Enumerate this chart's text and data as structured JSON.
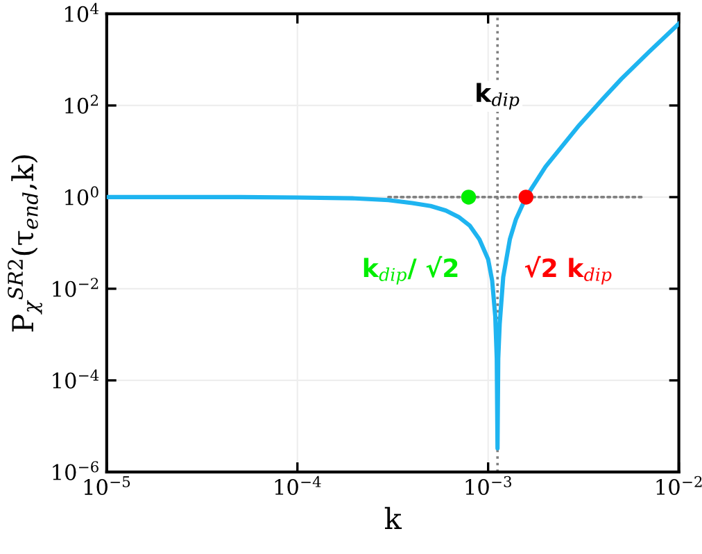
{
  "chart_data": {
    "type": "line",
    "xlabel": "k",
    "ylabel": "P$_{χ}$$^{SR2}$(τ$_{end}$,k)",
    "log": "xy",
    "grid": true,
    "xlim": [
      1e-05,
      0.01
    ],
    "ylim": [
      1e-06,
      10000.0
    ],
    "xticks": [
      {
        "value": 1e-05,
        "label": "10$^{−5}$"
      },
      {
        "value": 0.0001,
        "label": "10$^{−4}$"
      },
      {
        "value": 0.001,
        "label": "10$^{−3}$"
      },
      {
        "value": 0.01,
        "label": "10$^{−2}$"
      }
    ],
    "yticks": [
      {
        "value": 1e-06,
        "label": "10$^{−6}$"
      },
      {
        "value": 0.0001,
        "label": "10$^{−4}$"
      },
      {
        "value": 0.01,
        "label": "10$^{−2}$"
      },
      {
        "value": 1,
        "label": "10$^{0}$"
      },
      {
        "value": 100,
        "label": "10$^{2}$"
      },
      {
        "value": 10000.0,
        "label": "10$^{4}$"
      }
    ],
    "series": [
      {
        "color": "#808080",
        "line_style": "dotted",
        "x": [
          0.0003,
          0.0065
        ],
        "values": [
          1,
          1
        ]
      },
      {
        "color": "#1eb4f0",
        "line_style": "solid",
        "x": [
          1e-05,
          5e-05,
          0.0001,
          0.0002,
          0.0003,
          0.0004,
          0.0005,
          0.0006,
          0.0007,
          0.0008,
          0.0009,
          0.001,
          0.00105,
          0.00109,
          0.00111,
          0.00112,
          0.00113,
          0.00115,
          0.0012,
          0.0013,
          0.0014,
          0.00158,
          0.002,
          0.003,
          0.004,
          0.005,
          0.007,
          0.01
        ],
        "values": [
          1,
          1,
          0.98,
          0.94,
          0.86,
          0.74,
          0.64,
          0.51,
          0.37,
          0.24,
          0.12,
          0.044,
          0.015,
          0.0025,
          0.0003,
          3.3e-06,
          0.0003,
          0.0017,
          0.018,
          0.12,
          0.33,
          1.0,
          4.6,
          37,
          140,
          380,
          1500,
          6100
        ]
      },
      {
        "type": "scatter",
        "color": "#00ee00",
        "marker": "circle",
        "x": [
          0.00079
        ],
        "values": [
          1
        ]
      },
      {
        "type": "scatter",
        "color": "#ff0000",
        "marker": "circle",
        "x": [
          0.00158
        ],
        "values": [
          1
        ]
      }
    ],
    "ref_lines": [
      {
        "axis": "x",
        "value": 0.00112,
        "color": "#808080",
        "line_style": "dotted"
      }
    ],
    "annotations": [
      "k$_{dip}$",
      {
        "text": "k$_{dip}$/ √2",
        "x": 0.00079,
        "y": 1
      },
      {
        "text": "√2 k$_{dip}$",
        "x": 0.00158,
        "y": 1
      }
    ]
  }
}
